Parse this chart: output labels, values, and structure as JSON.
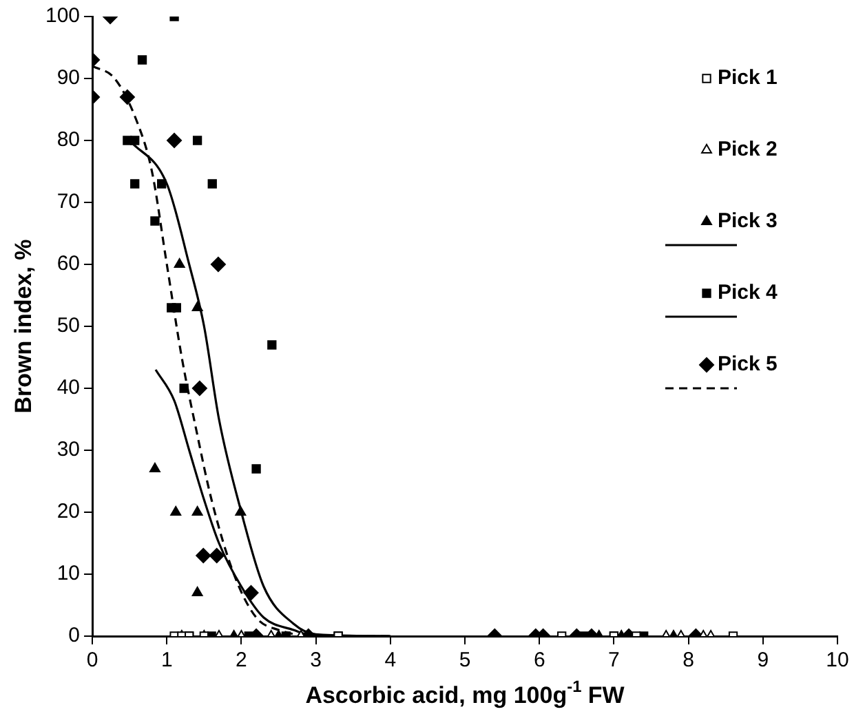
{
  "chart_data": {
    "type": "scatter",
    "xlabel": "Ascorbic acid, mg 100g$^{-1}$ FW",
    "ylabel": "Brown index, %",
    "xlim": [
      0,
      10
    ],
    "xticks": [
      0,
      1,
      2,
      3,
      4,
      5,
      6,
      7,
      8,
      9,
      10
    ],
    "ylim": [
      0,
      100
    ],
    "yticks": [
      0,
      10,
      20,
      30,
      40,
      50,
      60,
      70,
      80,
      90,
      100
    ],
    "grid": false,
    "legend": "right",
    "series": [
      {
        "name": "Pick 1",
        "color": "#ffffff",
        "marker": "square",
        "x": [
          1.1,
          1.2,
          1.3,
          1.5,
          3.3,
          6.3,
          7.0,
          7.3,
          8.6
        ],
        "values": [
          0,
          0,
          0,
          0,
          0,
          0,
          0,
          0,
          0
        ]
      },
      {
        "name": "Pick 2",
        "color": "#ffffff",
        "marker": "triangle",
        "x": [
          1.5,
          1.7,
          2.0,
          2.4,
          2.8,
          7.7,
          7.9,
          8.2,
          8.3
        ],
        "values": [
          0,
          0,
          0,
          0,
          0,
          0,
          0,
          0,
          0
        ]
      },
      {
        "name": "Pick 3",
        "color": "#000000",
        "marker": "triangle",
        "x": [
          1.17,
          1.41,
          0.84,
          1.12,
          1.41,
          1.99,
          1.41,
          1.2,
          1.9,
          2.5,
          6.8,
          7.1,
          7.8
        ],
        "values": [
          60,
          53,
          27,
          20,
          20,
          20,
          7,
          0,
          0,
          0,
          0,
          0,
          0
        ]
      },
      {
        "type": "line",
        "color": "#000000",
        "marker": "none",
        "line_style": "solid",
        "x": [
          0.85,
          1.1,
          1.3,
          1.5,
          1.7,
          2.0,
          2.3,
          2.7,
          3.0,
          4.0
        ],
        "values": [
          43,
          38,
          30,
          22,
          15,
          8,
          3,
          1,
          0,
          0
        ]
      },
      {
        "name": "Pick 4",
        "color": "#000000",
        "marker": "square",
        "x": [
          1.1,
          0.67,
          0.47,
          0.57,
          1.41,
          0.57,
          0.93,
          1.61,
          0.84,
          1.06,
          1.13,
          1.23,
          2.41,
          2.2,
          1.3,
          1.6,
          2.1,
          2.6,
          3.3,
          6.6,
          7.0,
          7.4
        ],
        "values": [
          100,
          93,
          80,
          80,
          80,
          73,
          73,
          73,
          67,
          53,
          53,
          40,
          47,
          27,
          0,
          0,
          0,
          0,
          0,
          0,
          0,
          0
        ]
      },
      {
        "type": "line",
        "color": "#000000",
        "marker": "none",
        "line_style": "solid",
        "x": [
          0.5,
          1.0,
          1.3,
          1.5,
          1.7,
          2.0,
          2.3,
          2.7,
          3.0,
          4.0
        ],
        "values": [
          80,
          73,
          60,
          50,
          35,
          20,
          8,
          2,
          0.3,
          0
        ]
      },
      {
        "name": "Pick 5",
        "color": "#000000",
        "marker": "diamond",
        "x": [
          0.24,
          0,
          0,
          0.47,
          1.1,
          1.69,
          1.44,
          1.49,
          1.67,
          2.13,
          2.2,
          2.9,
          5.4,
          5.95,
          6.05,
          6.5,
          6.7,
          7.2,
          8.1
        ],
        "values": [
          100,
          93,
          87,
          87,
          80,
          60,
          40,
          13,
          13,
          7,
          0,
          0,
          0,
          0,
          0,
          0,
          0,
          0,
          0
        ]
      },
      {
        "type": "line",
        "color": "#000000",
        "marker": "none",
        "line_style": "dashed",
        "x": [
          0,
          0.3,
          0.6,
          0.8,
          1.0,
          1.2,
          1.4,
          1.6,
          1.9,
          2.2,
          2.5,
          3.0,
          4.0
        ],
        "values": [
          92,
          90,
          83,
          75,
          60,
          45,
          33,
          22,
          10,
          3,
          1,
          0,
          0
        ]
      }
    ]
  }
}
